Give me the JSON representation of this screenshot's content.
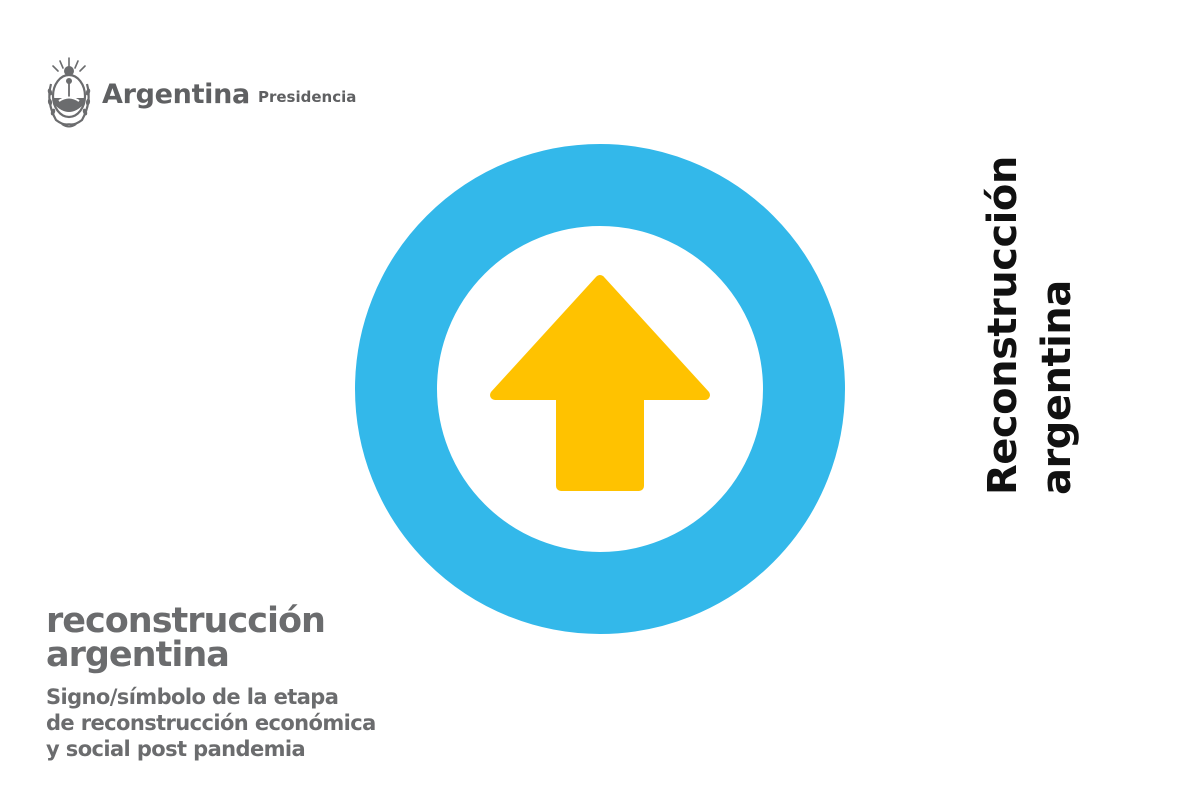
{
  "header": {
    "brand_name": "Argentina",
    "brand_sub": "Presidencia",
    "seal_icon": "argentina-coat-of-arms-icon"
  },
  "emblem": {
    "ring_color": "#33b8ea",
    "arrow_color": "#ffc200",
    "inner_color": "#ffffff",
    "icon": "up-arrow-icon"
  },
  "vertical_title": {
    "line1": "Reconstrucción",
    "line2": "argentina"
  },
  "caption": {
    "title_line1": "reconstrucción",
    "title_line2": "argentina",
    "desc_line1": "Signo/símbolo de la etapa",
    "desc_line2": "de reconstrucción económica",
    "desc_line3": "y social post pandemia"
  }
}
